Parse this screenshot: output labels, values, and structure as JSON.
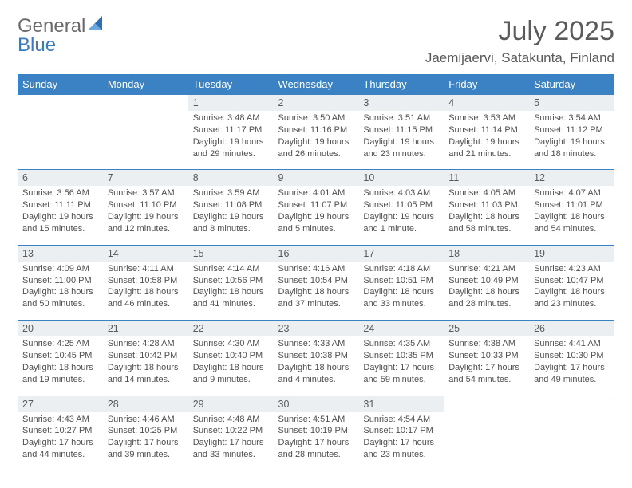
{
  "brand": {
    "part1": "General",
    "part2": "Blue"
  },
  "title": {
    "month_year": "July 2025",
    "location": "Jaemijaervi, Satakunta, Finland"
  },
  "colors": {
    "header_bg": "#3a82c4",
    "header_text": "#ffffff",
    "daynum_bg": "#eceff2",
    "text": "#505050",
    "logo_gray": "#6a6a6a",
    "logo_blue": "#3a7bbf"
  },
  "day_headers": [
    "Sunday",
    "Monday",
    "Tuesday",
    "Wednesday",
    "Thursday",
    "Friday",
    "Saturday"
  ],
  "weeks": [
    {
      "nums": [
        "",
        "",
        "1",
        "2",
        "3",
        "4",
        "5"
      ],
      "cells": [
        "",
        "",
        "Sunrise: 3:48 AM\nSunset: 11:17 PM\nDaylight: 19 hours and 29 minutes.",
        "Sunrise: 3:50 AM\nSunset: 11:16 PM\nDaylight: 19 hours and 26 minutes.",
        "Sunrise: 3:51 AM\nSunset: 11:15 PM\nDaylight: 19 hours and 23 minutes.",
        "Sunrise: 3:53 AM\nSunset: 11:14 PM\nDaylight: 19 hours and 21 minutes.",
        "Sunrise: 3:54 AM\nSunset: 11:12 PM\nDaylight: 19 hours and 18 minutes."
      ]
    },
    {
      "nums": [
        "6",
        "7",
        "8",
        "9",
        "10",
        "11",
        "12"
      ],
      "cells": [
        "Sunrise: 3:56 AM\nSunset: 11:11 PM\nDaylight: 19 hours and 15 minutes.",
        "Sunrise: 3:57 AM\nSunset: 11:10 PM\nDaylight: 19 hours and 12 minutes.",
        "Sunrise: 3:59 AM\nSunset: 11:08 PM\nDaylight: 19 hours and 8 minutes.",
        "Sunrise: 4:01 AM\nSunset: 11:07 PM\nDaylight: 19 hours and 5 minutes.",
        "Sunrise: 4:03 AM\nSunset: 11:05 PM\nDaylight: 19 hours and 1 minute.",
        "Sunrise: 4:05 AM\nSunset: 11:03 PM\nDaylight: 18 hours and 58 minutes.",
        "Sunrise: 4:07 AM\nSunset: 11:01 PM\nDaylight: 18 hours and 54 minutes."
      ]
    },
    {
      "nums": [
        "13",
        "14",
        "15",
        "16",
        "17",
        "18",
        "19"
      ],
      "cells": [
        "Sunrise: 4:09 AM\nSunset: 11:00 PM\nDaylight: 18 hours and 50 minutes.",
        "Sunrise: 4:11 AM\nSunset: 10:58 PM\nDaylight: 18 hours and 46 minutes.",
        "Sunrise: 4:14 AM\nSunset: 10:56 PM\nDaylight: 18 hours and 41 minutes.",
        "Sunrise: 4:16 AM\nSunset: 10:54 PM\nDaylight: 18 hours and 37 minutes.",
        "Sunrise: 4:18 AM\nSunset: 10:51 PM\nDaylight: 18 hours and 33 minutes.",
        "Sunrise: 4:21 AM\nSunset: 10:49 PM\nDaylight: 18 hours and 28 minutes.",
        "Sunrise: 4:23 AM\nSunset: 10:47 PM\nDaylight: 18 hours and 23 minutes."
      ]
    },
    {
      "nums": [
        "20",
        "21",
        "22",
        "23",
        "24",
        "25",
        "26"
      ],
      "cells": [
        "Sunrise: 4:25 AM\nSunset: 10:45 PM\nDaylight: 18 hours and 19 minutes.",
        "Sunrise: 4:28 AM\nSunset: 10:42 PM\nDaylight: 18 hours and 14 minutes.",
        "Sunrise: 4:30 AM\nSunset: 10:40 PM\nDaylight: 18 hours and 9 minutes.",
        "Sunrise: 4:33 AM\nSunset: 10:38 PM\nDaylight: 18 hours and 4 minutes.",
        "Sunrise: 4:35 AM\nSunset: 10:35 PM\nDaylight: 17 hours and 59 minutes.",
        "Sunrise: 4:38 AM\nSunset: 10:33 PM\nDaylight: 17 hours and 54 minutes.",
        "Sunrise: 4:41 AM\nSunset: 10:30 PM\nDaylight: 17 hours and 49 minutes."
      ]
    },
    {
      "nums": [
        "27",
        "28",
        "29",
        "30",
        "31",
        "",
        ""
      ],
      "cells": [
        "Sunrise: 4:43 AM\nSunset: 10:27 PM\nDaylight: 17 hours and 44 minutes.",
        "Sunrise: 4:46 AM\nSunset: 10:25 PM\nDaylight: 17 hours and 39 minutes.",
        "Sunrise: 4:48 AM\nSunset: 10:22 PM\nDaylight: 17 hours and 33 minutes.",
        "Sunrise: 4:51 AM\nSunset: 10:19 PM\nDaylight: 17 hours and 28 minutes.",
        "Sunrise: 4:54 AM\nSunset: 10:17 PM\nDaylight: 17 hours and 23 minutes.",
        "",
        ""
      ]
    }
  ]
}
